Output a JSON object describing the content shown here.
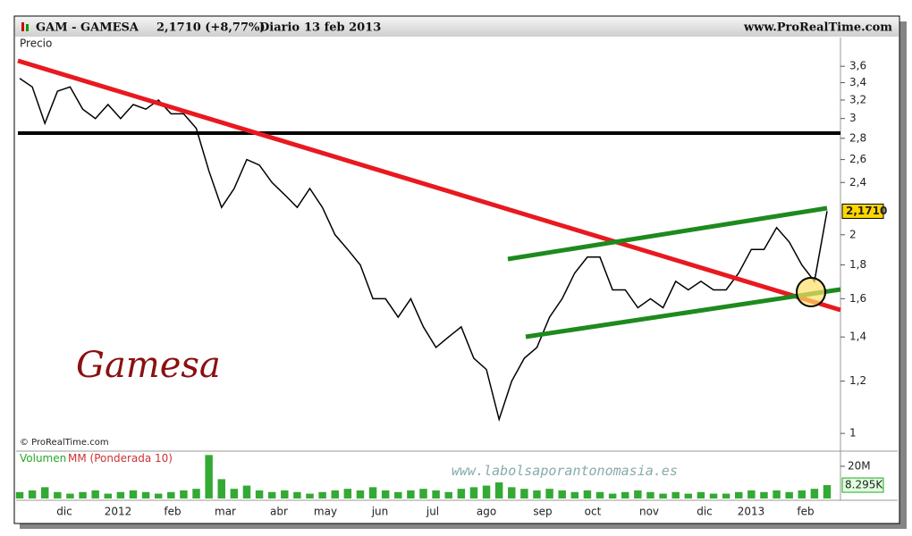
{
  "header": {
    "ticker": "GAM - GAMESA",
    "price": "2,1710 (+8,77%)",
    "period": "Diario",
    "date": "13 feb 2013",
    "site": "www.ProRealTime.com"
  },
  "chart_data": {
    "type": "line",
    "log_scale": true,
    "panel_label": "Precio",
    "annotation": "Gamesa",
    "watermark": "www.labolsaporantonomasia.es",
    "copyright": "© ProRealTime.com",
    "color": "#000000",
    "values": [
      3.45,
      3.35,
      2.95,
      3.3,
      3.35,
      3.1,
      3.0,
      3.15,
      3.0,
      3.15,
      3.1,
      3.2,
      3.05,
      3.05,
      2.9,
      2.5,
      2.2,
      2.35,
      2.6,
      2.55,
      2.4,
      2.3,
      2.2,
      2.35,
      2.2,
      2.0,
      1.9,
      1.8,
      1.6,
      1.6,
      1.5,
      1.6,
      1.45,
      1.35,
      1.4,
      1.45,
      1.3,
      1.25,
      1.05,
      1.2,
      1.3,
      1.35,
      1.5,
      1.6,
      1.75,
      1.85,
      1.85,
      1.65,
      1.65,
      1.55,
      1.6,
      1.55,
      1.7,
      1.65,
      1.7,
      1.65,
      1.65,
      1.75,
      1.9,
      1.9,
      2.05,
      1.95,
      1.8,
      1.7,
      2.171
    ],
    "last_value_label": "2,1710",
    "ylim": [
      0.94,
      3.98
    ],
    "yticks": [
      1,
      {
        "value": 1.2,
        "label": "1,2"
      },
      {
        "value": 1.4,
        "label": "1,4"
      },
      {
        "value": 1.6,
        "label": "1,6"
      },
      {
        "value": 1.8,
        "label": "1,8"
      },
      2,
      {
        "value": 2.4,
        "label": "2,4"
      },
      {
        "value": 2.6,
        "label": "2,6"
      },
      {
        "value": 2.8,
        "label": "2,8"
      },
      3,
      {
        "value": 3.2,
        "label": "3,2"
      },
      {
        "value": 3.4,
        "label": "3,4"
      },
      {
        "value": 3.6,
        "label": "3,6"
      }
    ],
    "x_labels": [
      "dic",
      "2012",
      "feb",
      "mar",
      "abr",
      "may",
      "jun",
      "jul",
      "ago",
      "sep",
      "oct",
      "nov",
      "dic",
      "2013",
      "feb"
    ],
    "volume": {
      "title": "Volumen",
      "ma_title": "MM (Ponderada 10)",
      "color": "#33aa33",
      "values": [
        4000000,
        5000000,
        7000000,
        4000000,
        3000000,
        4000000,
        5000000,
        3000000,
        4000000,
        5000000,
        4000000,
        3000000,
        4000000,
        5000000,
        6000000,
        27000000,
        12000000,
        6000000,
        8000000,
        5000000,
        4000000,
        5000000,
        4000000,
        3000000,
        4000000,
        5000000,
        6000000,
        5000000,
        7000000,
        5000000,
        4000000,
        5000000,
        6000000,
        5000000,
        4000000,
        6000000,
        7000000,
        8000000,
        10000000,
        7000000,
        6000000,
        5000000,
        6000000,
        5000000,
        4000000,
        5000000,
        4000000,
        3000000,
        4000000,
        5000000,
        4000000,
        3000000,
        4000000,
        3000000,
        4000000,
        3000000,
        3000000,
        4000000,
        5000000,
        4000000,
        5000000,
        4000000,
        5000000,
        6000000,
        8295000
      ],
      "last_value_label": "8.295K",
      "ylim": [
        0,
        28300000
      ],
      "yticks": [
        {
          "value": 20000000,
          "label": "20M"
        }
      ]
    }
  }
}
